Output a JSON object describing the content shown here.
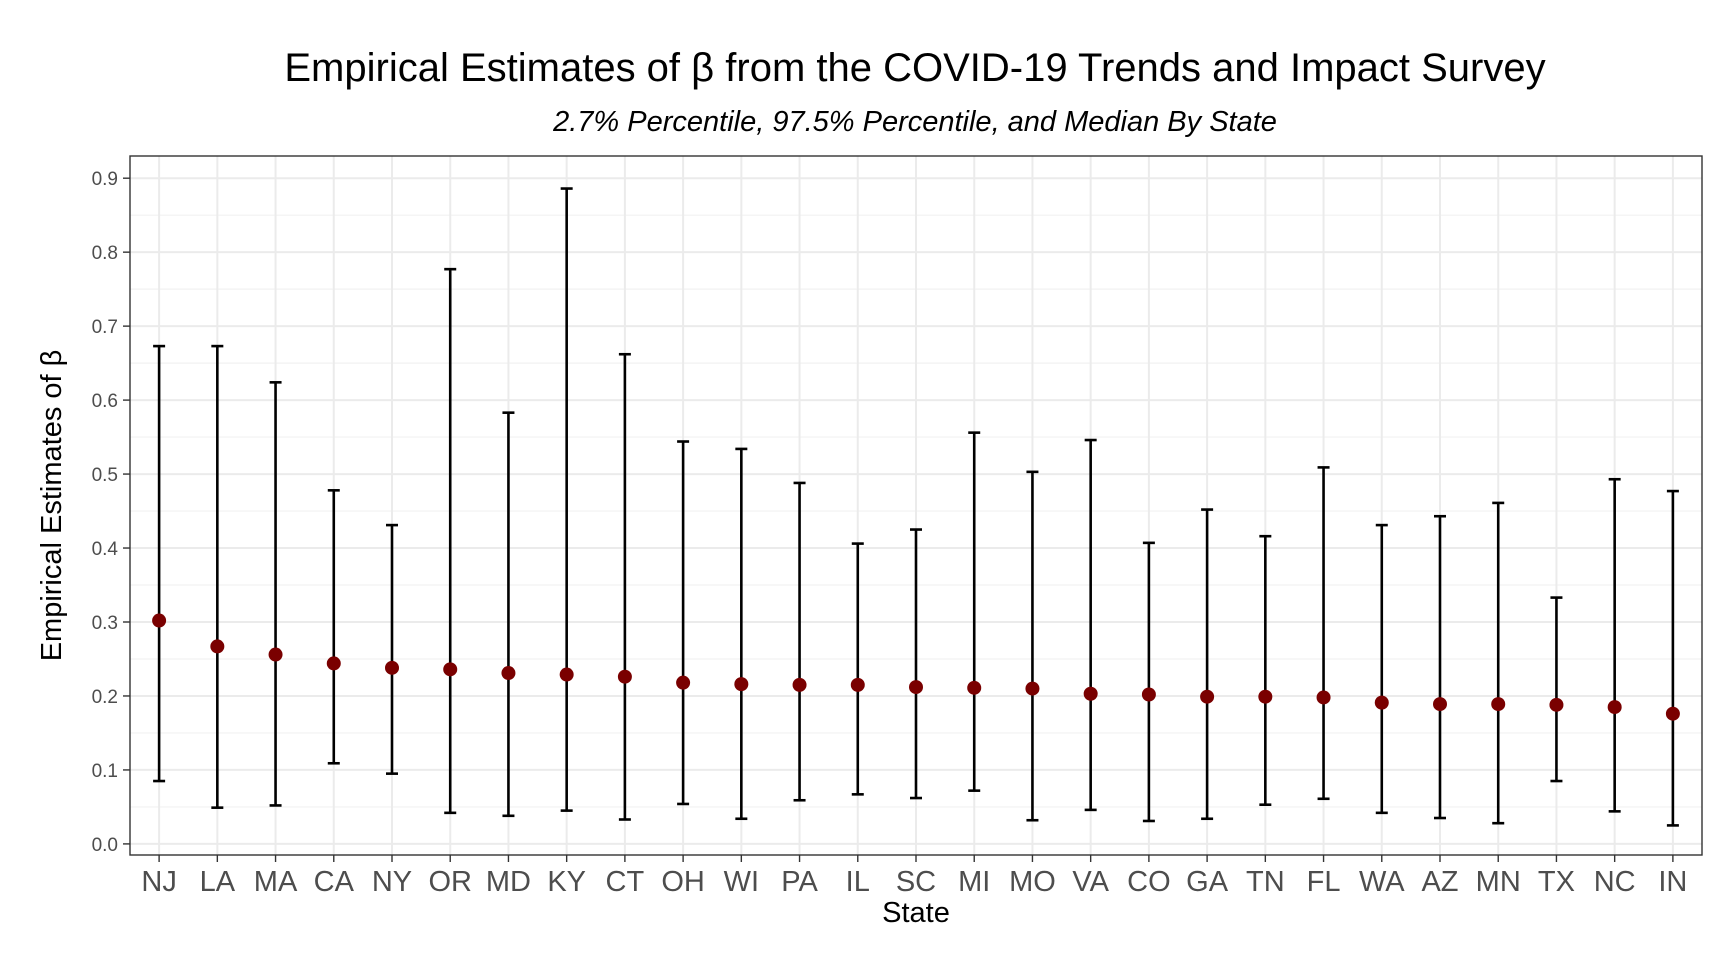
{
  "chart_data": {
    "type": "errorbar",
    "title": "Empirical Estimates of β from the COVID-19 Trends and Impact Survey",
    "subtitle": "2.7% Percentile, 97.5% Percentile, and Median By State",
    "xlabel": "State",
    "ylabel": "Empirical Estimates of β",
    "ylim": [
      -0.015,
      0.93
    ],
    "yticks": [
      0.0,
      0.1,
      0.2,
      0.3,
      0.4,
      0.5,
      0.6,
      0.7,
      0.8,
      0.9
    ],
    "ytick_labels": [
      "0.0",
      "0.1",
      "0.2",
      "0.3",
      "0.4",
      "0.5",
      "0.6",
      "0.7",
      "0.8",
      "0.9"
    ],
    "grid": true,
    "categories": [
      "NJ",
      "LA",
      "MA",
      "CA",
      "NY",
      "OR",
      "MD",
      "KY",
      "CT",
      "OH",
      "WI",
      "PA",
      "IL",
      "SC",
      "MI",
      "MO",
      "VA",
      "CO",
      "GA",
      "TN",
      "FL",
      "WA",
      "AZ",
      "MN",
      "TX",
      "NC",
      "IN"
    ],
    "median": [
      0.302,
      0.267,
      0.256,
      0.244,
      0.238,
      0.236,
      0.231,
      0.229,
      0.226,
      0.218,
      0.216,
      0.215,
      0.215,
      0.212,
      0.211,
      0.21,
      0.203,
      0.202,
      0.199,
      0.199,
      0.198,
      0.191,
      0.189,
      0.189,
      0.188,
      0.185,
      0.176
    ],
    "lower": [
      0.085,
      0.049,
      0.052,
      0.109,
      0.095,
      0.042,
      0.038,
      0.045,
      0.033,
      0.054,
      0.034,
      0.059,
      0.067,
      0.062,
      0.072,
      0.032,
      0.046,
      0.031,
      0.034,
      0.053,
      0.061,
      0.042,
      0.035,
      0.028,
      0.085,
      0.044,
      0.025
    ],
    "upper": [
      0.673,
      0.673,
      0.624,
      0.478,
      0.431,
      0.777,
      0.583,
      0.886,
      0.662,
      0.544,
      0.534,
      0.488,
      0.406,
      0.425,
      0.556,
      0.503,
      0.546,
      0.407,
      0.452,
      0.416,
      0.509,
      0.431,
      0.443,
      0.461,
      0.333,
      0.493,
      0.477
    ],
    "colors": {
      "point": "#7a0000",
      "errorbar": "#000000",
      "grid_major": "#ebebeb",
      "grid_minor": "#f2f2f2",
      "panel_border": "#333333"
    }
  }
}
